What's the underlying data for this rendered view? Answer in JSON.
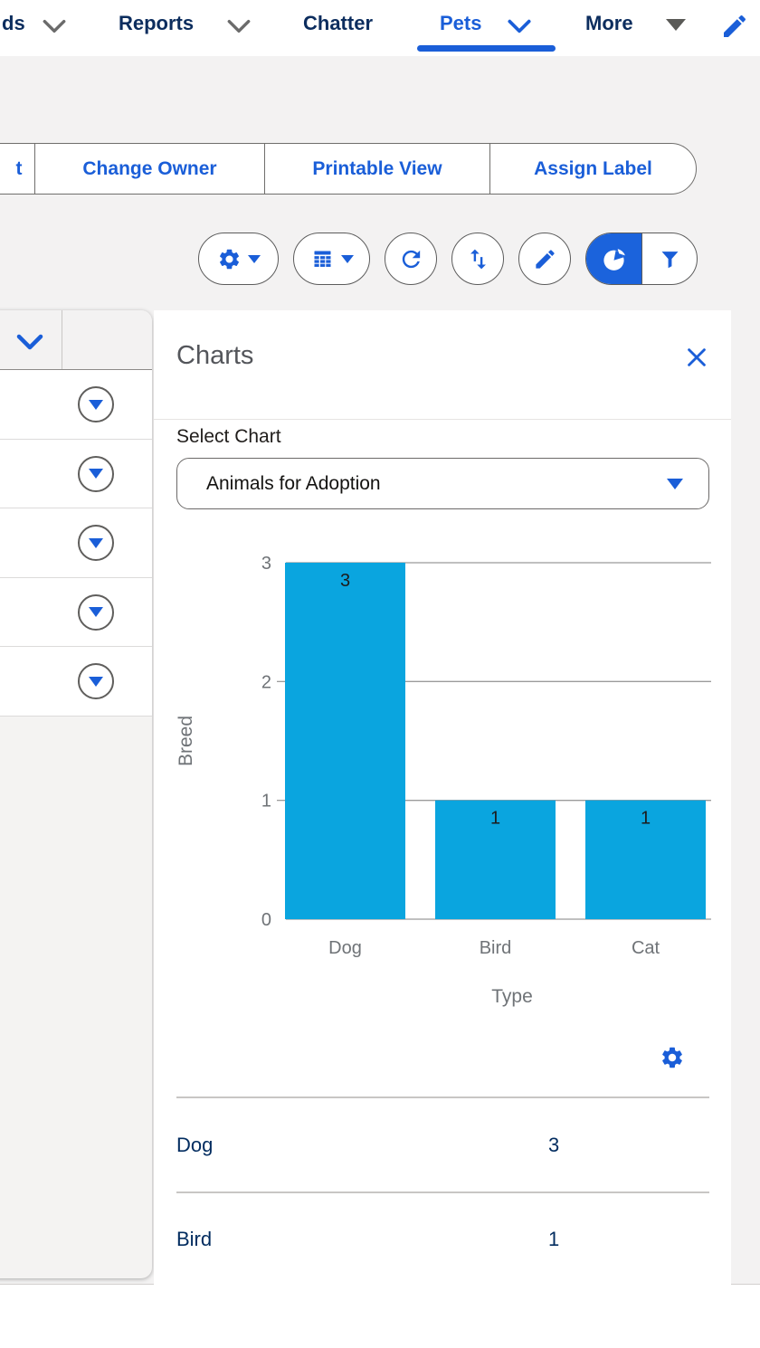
{
  "colors": {
    "accent": "#1a5ed8",
    "active_toggle_bg": "#1b63dc",
    "bar": "#0aa5df",
    "nav_text": "#0c2d5e",
    "summary_text": "#032d60",
    "chart_text": "#6f7377",
    "page_bg": "#f3f2f2"
  },
  "nav": {
    "items": [
      {
        "label": "ds",
        "truncated": true
      },
      {
        "label": "Reports"
      },
      {
        "label": "Chatter"
      },
      {
        "label": "Pets",
        "active": true
      },
      {
        "label": "More"
      }
    ],
    "edit_icon": "pencil-icon"
  },
  "actions": {
    "partial_button_label": "t",
    "buttons": [
      {
        "label": "Change Owner"
      },
      {
        "label": "Printable View"
      },
      {
        "label": "Assign Label"
      }
    ]
  },
  "toolbar": {
    "buttons": [
      {
        "icon": "settings-gear-icon",
        "has_caret": true
      },
      {
        "icon": "table-columns-icon",
        "has_caret": true
      },
      {
        "icon": "refresh-icon"
      },
      {
        "icon": "sort-arrows-icon"
      },
      {
        "icon": "edit-pencil-icon"
      },
      {
        "icon": "pie-chart-icon",
        "active": true
      },
      {
        "icon": "filter-funnel-icon"
      }
    ]
  },
  "records_table": {
    "visible_row_count": 5,
    "header_select_icon": "chevron-down-icon",
    "row_action_icon": "triangle-down-icon"
  },
  "charts_panel": {
    "title": "Charts",
    "close_icon": "close-x-icon",
    "select_chart_label": "Select Chart",
    "selected_chart": "Animals for Adoption",
    "settings_icon": "gear-icon",
    "summary_rows": [
      {
        "label": "Dog",
        "value": "3"
      },
      {
        "label": "Bird",
        "value": "1"
      }
    ]
  },
  "chart_data": {
    "type": "bar",
    "categories": [
      "Dog",
      "Bird",
      "Cat"
    ],
    "values": [
      3,
      1,
      1
    ],
    "title": "",
    "xlabel": "Type",
    "ylabel": "Breed",
    "yticks": [
      0,
      1,
      2,
      3
    ],
    "ylim": [
      0,
      3
    ],
    "grid": true,
    "legend": false,
    "data_labels": true,
    "bar_color": "#0aa5df"
  }
}
